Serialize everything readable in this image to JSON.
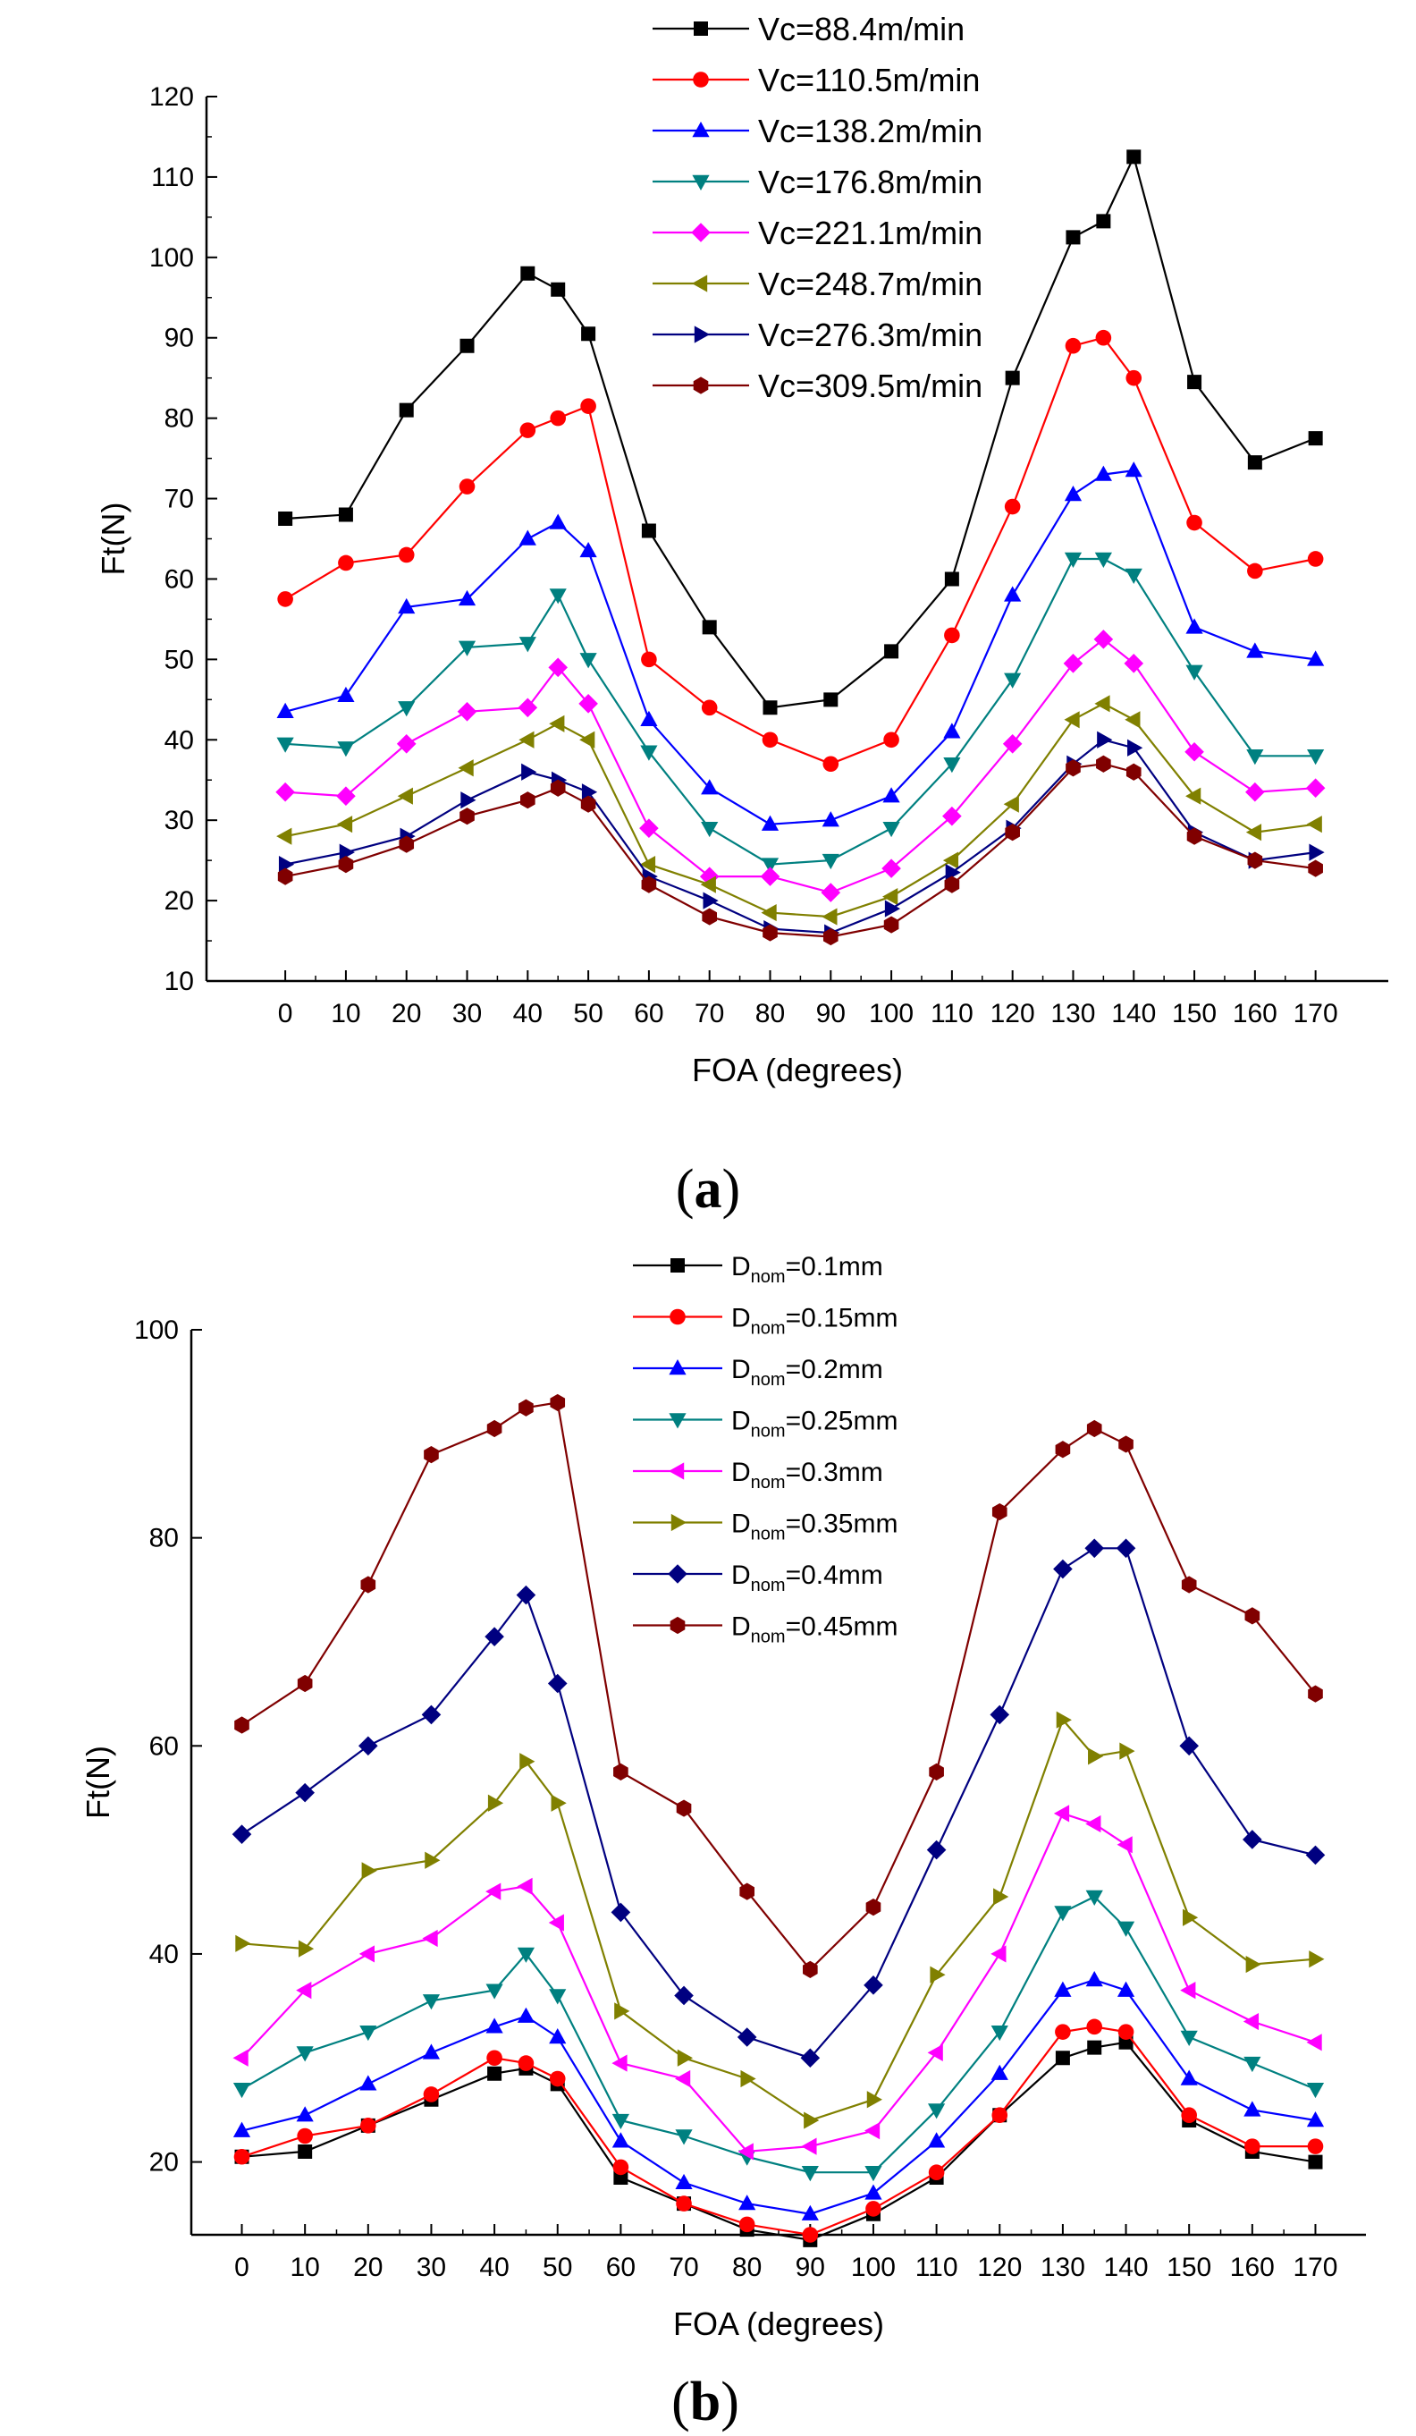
{
  "chart_data": [
    {
      "type": "line",
      "panel": "a",
      "panel_open": "(",
      "panel_letter": "a",
      "panel_close": ")",
      "xlabel": "FOA (degrees)",
      "ylabel": "Ft(N)",
      "x": [
        0,
        10,
        20,
        30,
        40,
        45,
        50,
        60,
        70,
        80,
        90,
        100,
        110,
        120,
        130,
        135,
        140,
        150,
        160,
        170
      ],
      "xticks": [
        0,
        10,
        20,
        30,
        40,
        50,
        60,
        70,
        80,
        90,
        100,
        110,
        120,
        130,
        140,
        150,
        160,
        170
      ],
      "ylim": [
        10,
        120
      ],
      "yticks": [
        10,
        20,
        30,
        40,
        50,
        60,
        70,
        80,
        90,
        100,
        110,
        120
      ],
      "legend_position": "top-right",
      "series": [
        {
          "name": "Vc=88.4m/min",
          "color": "#000000",
          "marker": "square",
          "values": [
            67.5,
            68,
            81,
            89,
            98,
            96,
            90.5,
            66,
            54,
            44,
            45,
            51,
            60,
            85,
            102.5,
            104.5,
            112.5,
            84.5,
            74.5,
            77.5
          ]
        },
        {
          "name": "Vc=110.5m/min",
          "color": "#ff0000",
          "marker": "circle",
          "values": [
            57.5,
            62,
            63,
            71.5,
            78.5,
            80,
            81.5,
            50,
            44,
            40,
            37,
            40,
            53,
            69,
            89,
            90,
            85,
            67,
            61,
            62.5
          ]
        },
        {
          "name": "Vc=138.2m/min",
          "color": "#0000ff",
          "marker": "triangle-up",
          "values": [
            43.5,
            45.5,
            56.5,
            57.5,
            65,
            67,
            63.5,
            42.5,
            34,
            29.5,
            30,
            33,
            41,
            58,
            70.5,
            73,
            73.5,
            54,
            51,
            50
          ]
        },
        {
          "name": "Vc=176.8m/min",
          "color": "#008080",
          "marker": "triangle-down",
          "values": [
            39.5,
            39,
            44,
            51.5,
            52,
            58,
            50,
            38.5,
            29,
            24.5,
            25,
            29,
            37,
            47.5,
            62.5,
            62.5,
            60.5,
            48.5,
            38,
            38
          ]
        },
        {
          "name": "Vc=221.1m/min",
          "color": "#ff00ff",
          "marker": "diamond",
          "values": [
            33.5,
            33,
            39.5,
            43.5,
            44,
            49,
            44.5,
            29,
            23,
            23,
            21,
            24,
            30.5,
            39.5,
            49.5,
            52.5,
            49.5,
            38.5,
            33.5,
            34
          ]
        },
        {
          "name": "Vc=248.7m/min",
          "color": "#808000",
          "marker": "triangle-left",
          "values": [
            28,
            29.5,
            33,
            36.5,
            40,
            42,
            40,
            24.5,
            22,
            18.5,
            18,
            20.5,
            25,
            32,
            42.5,
            44.5,
            42.5,
            33,
            28.5,
            29.5
          ]
        },
        {
          "name": "Vc=276.3m/min",
          "color": "#000080",
          "marker": "triangle-right",
          "values": [
            24.5,
            26,
            28,
            32.5,
            36,
            35,
            33.5,
            23,
            20,
            16.5,
            16,
            19,
            23.5,
            29,
            37,
            40,
            39,
            28.5,
            25,
            26
          ]
        },
        {
          "name": "Vc=309.5m/min",
          "color": "#800000",
          "marker": "hexagon",
          "values": [
            23,
            24.5,
            27,
            30.5,
            32.5,
            34,
            32,
            22,
            18,
            16,
            15.5,
            17,
            22,
            28.5,
            36.5,
            37,
            36,
            28,
            25,
            24
          ]
        }
      ]
    },
    {
      "type": "line",
      "panel": "b",
      "panel_open": "(",
      "panel_letter": "b",
      "panel_close": ")",
      "xlabel": "FOA (degrees)",
      "ylabel": "Ft(N)",
      "x": [
        0,
        10,
        20,
        30,
        40,
        45,
        50,
        60,
        70,
        80,
        90,
        100,
        110,
        120,
        130,
        135,
        140,
        150,
        160,
        170
      ],
      "xticks": [
        0,
        10,
        20,
        30,
        40,
        50,
        60,
        70,
        80,
        90,
        100,
        110,
        120,
        130,
        140,
        150,
        160,
        170
      ],
      "ylim": [
        13,
        100
      ],
      "yticks": [
        20,
        40,
        60,
        80,
        100
      ],
      "legend_position": "top-center",
      "legend_prefix": "D",
      "legend_subscript": "nom",
      "series": [
        {
          "name": "Dnom=0.1mm",
          "label_suffix": "=0.1mm",
          "color": "#000000",
          "marker": "square",
          "values": [
            20.5,
            21,
            23.5,
            26,
            28.5,
            29,
            27.5,
            18.5,
            16,
            13.5,
            12.5,
            15,
            18.5,
            24.5,
            30,
            31,
            31.5,
            24,
            21,
            20
          ]
        },
        {
          "name": "Dnom=0.15mm",
          "label_suffix": "=0.15mm",
          "color": "#ff0000",
          "marker": "circle",
          "values": [
            20.5,
            22.5,
            23.5,
            26.5,
            30,
            29.5,
            28,
            19.5,
            16,
            14,
            13,
            15.5,
            19,
            24.5,
            32.5,
            33,
            32.5,
            24.5,
            21.5,
            21.5
          ]
        },
        {
          "name": "Dnom=0.2mm",
          "label_suffix": "=0.2mm",
          "color": "#0000ff",
          "marker": "triangle-up",
          "values": [
            23,
            24.5,
            27.5,
            30.5,
            33,
            34,
            32,
            22,
            18,
            16,
            15,
            17,
            22,
            28.5,
            36.5,
            37.5,
            36.5,
            28,
            25,
            24
          ]
        },
        {
          "name": "Dnom=0.25mm",
          "label_suffix": "=0.25mm",
          "color": "#008080",
          "marker": "triangle-down",
          "values": [
            27,
            30.5,
            32.5,
            35.5,
            36.5,
            40,
            36,
            24,
            22.5,
            20.5,
            19,
            19,
            25,
            32.5,
            44,
            45.5,
            42.5,
            32,
            29.5,
            27
          ]
        },
        {
          "name": "Dnom=0.3mm",
          "label_suffix": "=0.3mm",
          "color": "#ff00ff",
          "marker": "triangle-left",
          "values": [
            30,
            36.5,
            40,
            41.5,
            46,
            46.5,
            43,
            29.5,
            28,
            21,
            21.5,
            23,
            30.5,
            40,
            53.5,
            52.5,
            50.5,
            36.5,
            33.5,
            31.5
          ]
        },
        {
          "name": "Dnom=0.35mm",
          "label_suffix": "=0.35mm",
          "color": "#808000",
          "marker": "triangle-right",
          "values": [
            41,
            40.5,
            48,
            49,
            54.5,
            58.5,
            54.5,
            34.5,
            30,
            28,
            24,
            26,
            38,
            45.5,
            62.5,
            59,
            59.5,
            43.5,
            39,
            39.5
          ]
        },
        {
          "name": "Dnom=0.4mm",
          "label_suffix": "=0.4mm",
          "color": "#000080",
          "marker": "diamond",
          "values": [
            51.5,
            55.5,
            60,
            63,
            70.5,
            74.5,
            66,
            44,
            36,
            32,
            30,
            37,
            50,
            63,
            77,
            79,
            79,
            60,
            51,
            49.5
          ]
        },
        {
          "name": "Dnom=0.45mm",
          "label_suffix": "=0.45mm",
          "color": "#800000",
          "marker": "hexagon",
          "values": [
            62,
            66,
            75.5,
            88,
            90.5,
            92.5,
            93,
            57.5,
            54,
            46,
            38.5,
            44.5,
            57.5,
            82.5,
            88.5,
            90.5,
            89,
            75.5,
            72.5,
            65
          ]
        }
      ]
    }
  ]
}
